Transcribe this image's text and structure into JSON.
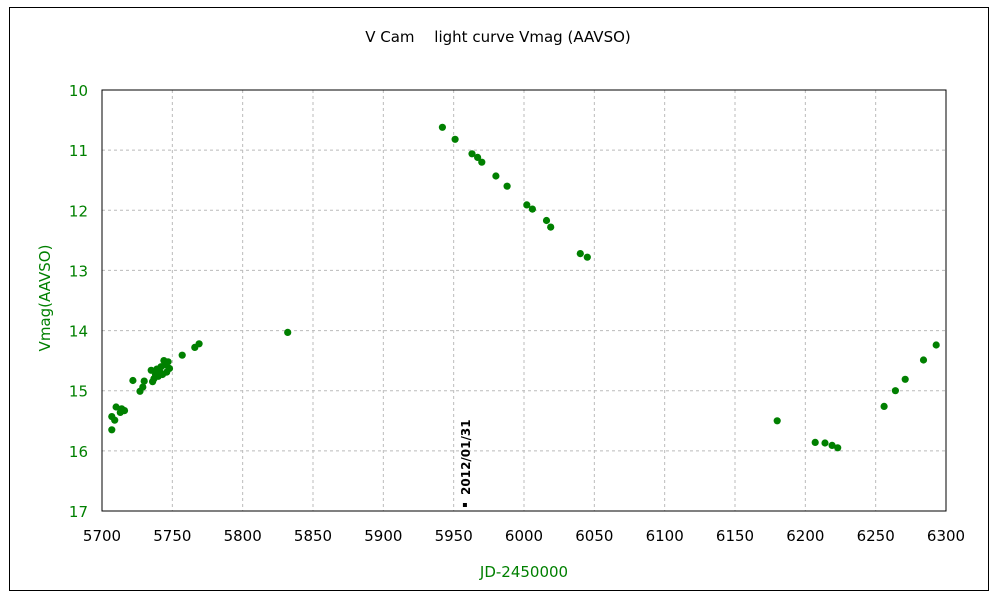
{
  "chart_data": {
    "type": "scatter",
    "title": "V Cam　 light curve  Vmag (AAVSO)",
    "xlabel": "JD-2450000",
    "ylabel": "Vmag(AAVSO)",
    "xlim": [
      5700,
      6300
    ],
    "ylim": [
      10,
      17
    ],
    "y_inverted": true,
    "x_ticks": [
      5700,
      5750,
      5800,
      5850,
      5900,
      5950,
      6000,
      6050,
      6100,
      6150,
      6200,
      6250,
      6300
    ],
    "y_ticks": [
      10,
      11,
      12,
      13,
      14,
      15,
      16,
      17
    ],
    "grid": true,
    "colors": {
      "points": "#008000",
      "axis_text": "#008000",
      "x_ticks": "#000000",
      "grid": "#bbbbbb",
      "annotation": "#000000"
    },
    "annotation": {
      "label": "2012/01/31",
      "x": 5958,
      "y": 16.9
    },
    "series": [
      {
        "values": [
          [
            5707,
            15.43
          ],
          [
            5707,
            15.65
          ],
          [
            5709,
            15.49
          ],
          [
            5710,
            15.27
          ],
          [
            5713,
            15.36
          ],
          [
            5714,
            15.3
          ],
          [
            5716,
            15.33
          ],
          [
            5722,
            14.83
          ],
          [
            5727,
            15.01
          ],
          [
            5729,
            14.94
          ],
          [
            5730,
            14.84
          ],
          [
            5735,
            14.66
          ],
          [
            5736,
            14.85
          ],
          [
            5737,
            14.8
          ],
          [
            5738,
            14.73
          ],
          [
            5739,
            14.64
          ],
          [
            5740,
            14.76
          ],
          [
            5741,
            14.68
          ],
          [
            5742,
            14.6
          ],
          [
            5743,
            14.73
          ],
          [
            5744,
            14.5
          ],
          [
            5745,
            14.57
          ],
          [
            5746,
            14.69
          ],
          [
            5747,
            14.52
          ],
          [
            5748,
            14.63
          ],
          [
            5757,
            14.41
          ],
          [
            5766,
            14.28
          ],
          [
            5769,
            14.22
          ],
          [
            5832,
            14.03
          ],
          [
            5942,
            10.62
          ],
          [
            5951,
            10.82
          ],
          [
            5963,
            11.06
          ],
          [
            5967,
            11.12
          ],
          [
            5970,
            11.2
          ],
          [
            5980,
            11.43
          ],
          [
            5988,
            11.6
          ],
          [
            6002,
            11.91
          ],
          [
            6006,
            11.98
          ],
          [
            6016,
            12.17
          ],
          [
            6019,
            12.28
          ],
          [
            6040,
            12.72
          ],
          [
            6045,
            12.78
          ],
          [
            6180,
            15.5
          ],
          [
            6207,
            15.86
          ],
          [
            6214,
            15.87
          ],
          [
            6219,
            15.91
          ],
          [
            6223,
            15.95
          ],
          [
            6256,
            15.26
          ],
          [
            6264,
            15.0
          ],
          [
            6271,
            14.81
          ],
          [
            6284,
            14.49
          ],
          [
            6293,
            14.24
          ]
        ]
      }
    ]
  }
}
